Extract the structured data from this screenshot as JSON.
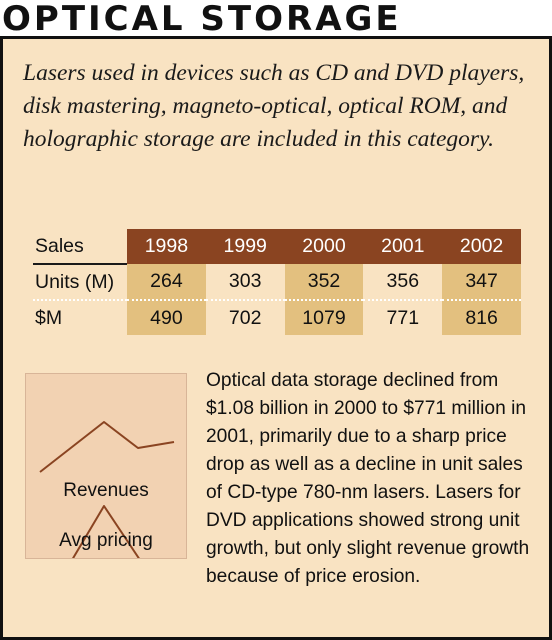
{
  "title": "OPTICAL STORAGE",
  "intro": "Lasers used in devices such as CD and DVD players, disk mastering, magneto-optical, optical ROM, and holographic storage are included in this category.",
  "table": {
    "corner": "Sales",
    "years": [
      "1998",
      "1999",
      "2000",
      "2001",
      "2002"
    ],
    "rows": [
      {
        "label": "Units (M)",
        "values": [
          "264",
          "303",
          "352",
          "356",
          "347"
        ]
      },
      {
        "label": "$M",
        "values": [
          "490",
          "702",
          "1079",
          "771",
          "816"
        ]
      }
    ]
  },
  "trend_chart": {
    "revenues_label": "Revenues",
    "avg_pricing_label": "Avg pricing"
  },
  "body": "Optical data storage declined from $1.08 billion in 2000 to $771 million in 2001, primarily due to a sharp price drop as well as a decline in unit sales of CD-type 780-nm lasers. Lasers for DVD applications showed strong unit growth, but only slight revenue growth because of price erosion.",
  "colors": {
    "panel_bg": "#f9e3c2",
    "header_bg": "#8a4421",
    "highlight": "#e3c07f",
    "line": "#8a4421"
  }
}
